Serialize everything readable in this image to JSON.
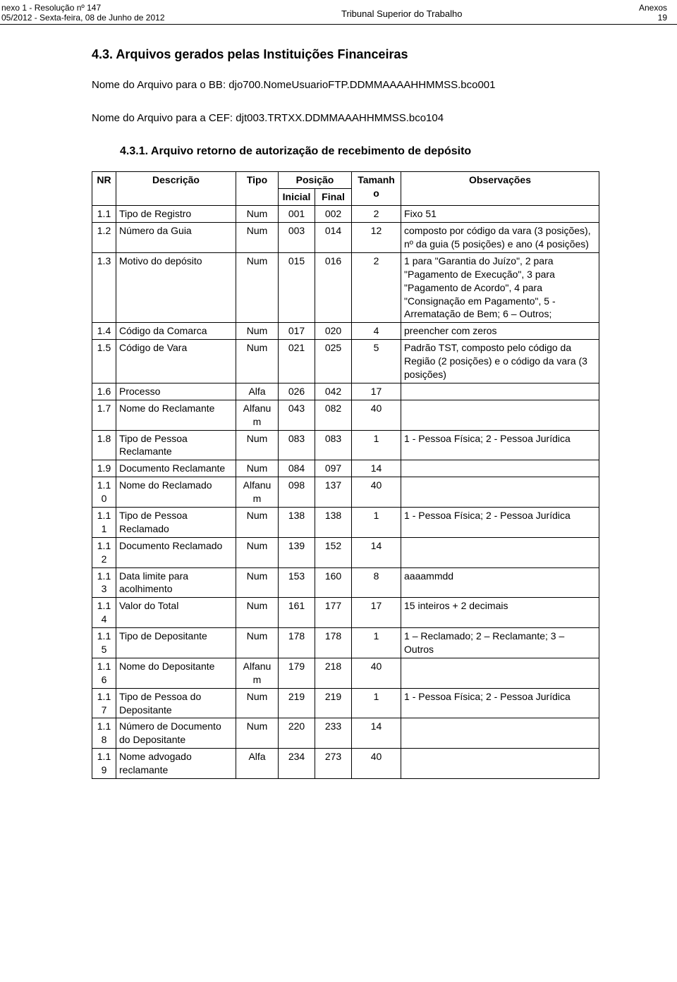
{
  "header": {
    "left1": "nexo 1 - Resolução nº 147",
    "left2": "05/2012 - Sexta-feira, 08 de Junho de 2012",
    "center": "Tribunal Superior do Trabalho",
    "right1": "Anexos",
    "right2": "19"
  },
  "section": {
    "number_title": "4.3.      Arquivos gerados pelas Instituições Financeiras",
    "para1": "Nome do Arquivo para o BB: djo700.NomeUsuarioFTP.DDMMAAAAHHMMSS.bco001",
    "para2": "Nome do Arquivo para a CEF: djt003.TRTXX.DDMMAAAHHMMSS.bco104",
    "sub_title": "4.3.1.  Arquivo retorno de autorização de recebimento de depósito"
  },
  "table": {
    "head": {
      "nr": "NR",
      "desc": "Descrição",
      "tipo": "Tipo",
      "pos": "Posição",
      "tam": "Tamanho",
      "obs": "Observações",
      "ini": "Inicial",
      "fin": "Final"
    },
    "rows": [
      {
        "nr": "1.1",
        "desc": "Tipo de Registro",
        "tipo": "Num",
        "ini": "001",
        "fin": "002",
        "tam": "2",
        "obs": "Fixo 51"
      },
      {
        "nr": "1.2",
        "desc": "Número da Guia",
        "tipo": "Num",
        "ini": "003",
        "fin": "014",
        "tam": "12",
        "obs": "composto por código da vara (3 posições), nº da guia (5 posições) e ano (4 posições)"
      },
      {
        "nr": "1.3",
        "desc": "Motivo do depósito",
        "tipo": "Num",
        "ini": "015",
        "fin": "016",
        "tam": "2",
        "obs": "1 para \"Garantia do Juízo\", 2 para \"Pagamento de Execução\", 3 para \"Pagamento de Acordo\", 4 para \"Consignação em Pagamento\", 5 - Arrematação de Bem; 6 – Outros;"
      },
      {
        "nr": "1.4",
        "desc": "Código da Comarca",
        "tipo": "Num",
        "ini": "017",
        "fin": "020",
        "tam": "4",
        "obs": "preencher com zeros"
      },
      {
        "nr": "1.5",
        "desc": "Código de Vara",
        "tipo": "Num",
        "ini": "021",
        "fin": "025",
        "tam": "5",
        "obs": "Padrão TST, composto pelo código da Região (2 posições) e o código da vara (3 posições)"
      },
      {
        "nr": "1.6",
        "desc": "Processo",
        "tipo": "Alfa",
        "ini": "026",
        "fin": "042",
        "tam": "17",
        "obs": ""
      },
      {
        "nr": "1.7",
        "desc": "Nome do Reclamante",
        "tipo": "Alfanum",
        "ini": "043",
        "fin": "082",
        "tam": "40",
        "obs": ""
      },
      {
        "nr": "1.8",
        "desc": "Tipo de Pessoa Reclamante",
        "tipo": "Num",
        "ini": "083",
        "fin": "083",
        "tam": "1",
        "obs": "1 - Pessoa Física; 2 - Pessoa Jurídica"
      },
      {
        "nr": "1.9",
        "desc": "Documento Reclamante",
        "tipo": "Num",
        "ini": "084",
        "fin": "097",
        "tam": "14",
        "obs": ""
      },
      {
        "nr": "1.10",
        "desc": "Nome do Reclamado",
        "tipo": "Alfanum",
        "ini": "098",
        "fin": "137",
        "tam": "40",
        "obs": ""
      },
      {
        "nr": "1.11",
        "desc": "Tipo de Pessoa Reclamado",
        "tipo": "Num",
        "ini": "138",
        "fin": "138",
        "tam": "1",
        "obs": "1 - Pessoa Física; 2 - Pessoa Jurídica"
      },
      {
        "nr": "1.12",
        "desc": "Documento Reclamado",
        "tipo": "Num",
        "ini": "139",
        "fin": "152",
        "tam": "14",
        "obs": ""
      },
      {
        "nr": "1.13",
        "desc": "Data limite para acolhimento",
        "tipo": "Num",
        "ini": "153",
        "fin": "160",
        "tam": "8",
        "obs": "aaaammdd"
      },
      {
        "nr": "1.14",
        "desc": "Valor do Total",
        "tipo": "Num",
        "ini": "161",
        "fin": "177",
        "tam": "17",
        "obs": "15 inteiros + 2 decimais"
      },
      {
        "nr": "1.15",
        "desc": "Tipo de Depositante",
        "tipo": "Num",
        "ini": "178",
        "fin": "178",
        "tam": "1",
        "obs": "1 – Reclamado; 2 – Reclamante; 3 – Outros"
      },
      {
        "nr": "1.16",
        "desc": "Nome do Depositante",
        "tipo": "Alfanum",
        "ini": "179",
        "fin": "218",
        "tam": "40",
        "obs": ""
      },
      {
        "nr": "1.17",
        "desc": "Tipo de Pessoa do Depositante",
        "tipo": "Num",
        "ini": "219",
        "fin": "219",
        "tam": "1",
        "obs": "1 - Pessoa Física; 2 - Pessoa Jurídica"
      },
      {
        "nr": "1.18",
        "desc": "Número de Documento do Depositante",
        "tipo": "Num",
        "ini": "220",
        "fin": "233",
        "tam": "14",
        "obs": ""
      },
      {
        "nr": "1.19",
        "desc": "Nome advogado reclamante",
        "tipo": "Alfa",
        "ini": "234",
        "fin": "273",
        "tam": "40",
        "obs": ""
      }
    ]
  }
}
